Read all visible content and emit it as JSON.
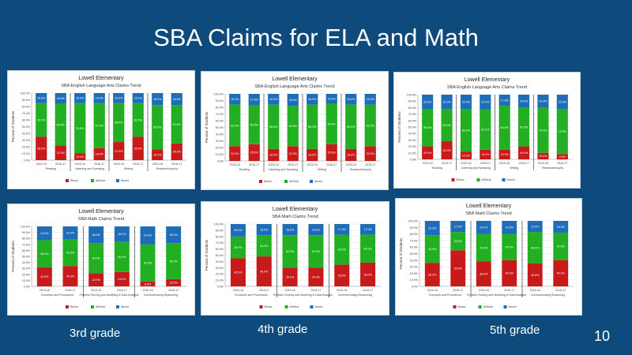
{
  "slide": {
    "title": "SBA Claims for ELA and Math",
    "page_number": "10",
    "grade_labels": [
      "3rd grade",
      "4th grade",
      "5th grade"
    ]
  },
  "colors": {
    "below": "#c8191b",
    "near": "#22b022",
    "above": "#1e6db8"
  },
  "chart_data": [
    {
      "type": "bar",
      "stacked": true,
      "title": "Lowell Elementary",
      "subtitle": "SBA English Language Arts Claims Trend",
      "ylabel": "Percent of Students",
      "ylim": [
        0,
        100
      ],
      "yticks": [
        "0.0%",
        "10.0%",
        "20.0%",
        "30.0%",
        "40.0%",
        "50.0%",
        "60.0%",
        "70.0%",
        "80.0%",
        "90.0%",
        "100.0%"
      ],
      "categories": [
        "2015-16",
        "2016-17",
        "2015-16",
        "2016-17",
        "2015-16",
        "2016-17",
        "2015-16",
        "2016-17"
      ],
      "groups": [
        "Reading",
        "Listening and Speaking",
        "Writing",
        "Research/Inquiry"
      ],
      "series": [
        {
          "name": "Below",
          "values": [
            35,
            22,
            10,
            18,
            27,
            35,
            16,
            25
          ]
        },
        {
          "name": "At/Near",
          "values": [
            50,
            62,
            75,
            67,
            58,
            50,
            66,
            57
          ]
        },
        {
          "name": "Above",
          "values": [
            15,
            16,
            15,
            15,
            15,
            15,
            18,
            18
          ]
        }
      ]
    },
    {
      "type": "bar",
      "stacked": true,
      "title": "Lowell Elementary",
      "subtitle": "SBA English Language Arts Claims Trend",
      "ylabel": "Percent of Students",
      "ylim": [
        0,
        100
      ],
      "yticks": [
        "0.0%",
        "10.0%",
        "20.0%",
        "30.0%",
        "40.0%",
        "50.0%",
        "60.0%",
        "70.0%",
        "80.0%",
        "90.0%",
        "100.0%"
      ],
      "categories": [
        "2015-16",
        "2016-17",
        "2015-16",
        "2016-17",
        "2015-16",
        "2016-17",
        "2015-16",
        "2016-17"
      ],
      "groups": [
        "Reading",
        "Listening and Speaking",
        "Writing",
        "Research/Inquiry"
      ],
      "series": [
        {
          "name": "Below",
          "values": [
            22,
            25,
            18,
            22,
            18,
            25,
            18,
            22
          ]
        },
        {
          "name": "At/Near",
          "values": [
            62,
            58,
            66,
            60,
            66,
            60,
            66,
            62
          ]
        },
        {
          "name": "Above",
          "values": [
            16,
            17,
            16,
            18,
            16,
            15,
            16,
            16
          ]
        }
      ]
    },
    {
      "type": "bar",
      "stacked": true,
      "title": "Lowell Elementary",
      "subtitle": "SBA English Language Arts Claims Trend",
      "ylabel": "Percent of Students",
      "ylim": [
        0,
        100
      ],
      "yticks": [
        "0.0%",
        "10.0%",
        "20.0%",
        "30.0%",
        "40.0%",
        "50.0%",
        "60.0%",
        "70.0%",
        "80.0%",
        "90.0%",
        "100.0%"
      ],
      "categories": [
        "2015-16",
        "2016-17",
        "2015-16",
        "2016-17",
        "2015-16",
        "2016-17",
        "2015-16",
        "2016-17"
      ],
      "groups": [
        "Reading",
        "Listening and Speaking",
        "Writing",
        "Research/Inquiry"
      ],
      "series": [
        {
          "name": "Below",
          "values": [
            20,
            28,
            12,
            15,
            15,
            20,
            10,
            8
          ]
        },
        {
          "name": "At/Near",
          "values": [
            58,
            50,
            66,
            62,
            68,
            60,
            70,
            70
          ]
        },
        {
          "name": "Above",
          "values": [
            22,
            22,
            22,
            23,
            17,
            20,
            20,
            22
          ]
        }
      ]
    },
    {
      "type": "bar",
      "stacked": true,
      "title": "Lowell Elementary",
      "subtitle": "SBA Math Claims Trend",
      "ylabel": "Percent of Students",
      "ylim": [
        0,
        100
      ],
      "yticks": [
        "0.0%",
        "10.0%",
        "20.0%",
        "30.0%",
        "40.0%",
        "50.0%",
        "60.0%",
        "70.0%",
        "80.0%",
        "90.0%",
        "100.0%"
      ],
      "categories": [
        "2015-16",
        "2016-17",
        "2015-16",
        "2016-17",
        "2015-16",
        "2016-17"
      ],
      "groups": [
        "Concepts and Procedures",
        "Problem Solving and Modeling & Data Analysis",
        "Communicating Reasoning"
      ],
      "series": [
        {
          "name": "Below",
          "values": [
            32,
            34,
            22,
            24,
            8,
            12
          ]
        },
        {
          "name": "At/Near",
          "values": [
            45,
            44,
            50,
            50,
            62,
            60
          ]
        },
        {
          "name": "Above",
          "values": [
            23,
            22,
            28,
            26,
            30,
            28
          ]
        }
      ]
    },
    {
      "type": "bar",
      "stacked": true,
      "title": "Lowell Elementary",
      "subtitle": "SBA Math Claims Trend",
      "ylabel": "Percent of Students",
      "ylim": [
        0,
        100
      ],
      "yticks": [
        "0.0%",
        "10.0%",
        "20.0%",
        "30.0%",
        "40.0%",
        "50.0%",
        "60.0%",
        "70.0%",
        "80.0%",
        "90.0%",
        "100.0%"
      ],
      "categories": [
        "2015-16",
        "2016-17",
        "2015-16",
        "2016-17",
        "2015-16",
        "2016-17"
      ],
      "groups": [
        "Concepts and Procedures",
        "Problem Solving and Modeling & Data Analysis",
        "Communicating Reasoning"
      ],
      "series": [
        {
          "name": "Below",
          "values": [
            45,
            48,
            30,
            30,
            35,
            38
          ]
        },
        {
          "name": "At/Near",
          "values": [
            35,
            34,
            52,
            52,
            48,
            45
          ]
        },
        {
          "name": "Above",
          "values": [
            20,
            18,
            18,
            18,
            17,
            17
          ]
        }
      ]
    },
    {
      "type": "bar",
      "stacked": true,
      "title": "Lowell Elementary",
      "subtitle": "SBA Math Claims Trend",
      "ylabel": "Percent of Students",
      "ylim": [
        0,
        100
      ],
      "yticks": [
        "0.0%",
        "10.0%",
        "20.0%",
        "30.0%",
        "40.0%",
        "50.0%",
        "60.0%",
        "70.0%",
        "80.0%",
        "90.0%",
        "100.0%"
      ],
      "categories": [
        "2015-16",
        "2016-17",
        "2015-16",
        "2016-17",
        "2015-16",
        "2016-17"
      ],
      "groups": [
        "Concepts and Procedures",
        "Problem Solving and Modeling & Data Analysis",
        "Communicating Reasoning"
      ],
      "series": [
        {
          "name": "Below",
          "values": [
            36,
            55,
            38,
            40,
            35,
            40
          ]
        },
        {
          "name": "At/Near",
          "values": [
            42,
            28,
            42,
            40,
            48,
            42
          ]
        },
        {
          "name": "Above",
          "values": [
            22,
            17,
            20,
            20,
            17,
            18
          ]
        }
      ]
    }
  ]
}
